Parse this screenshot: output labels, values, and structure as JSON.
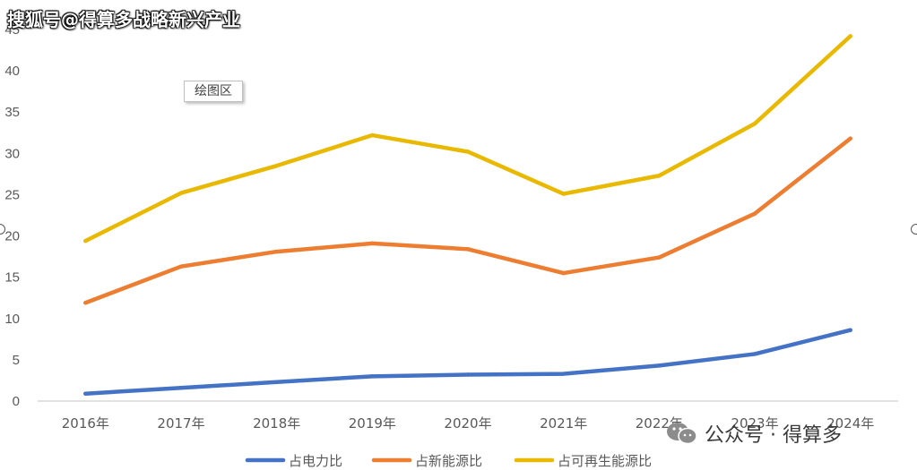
{
  "watermark_top": "搜狐号@得算多战略新兴产业",
  "plot_area_label": "绘图区",
  "watermark_bottom": "公众号 · 得算多",
  "colors": {
    "blue": "#4472C4",
    "orange": "#ED7D31",
    "yellow": "#E8B900",
    "axis": "#D9D9D9",
    "text": "#595959"
  },
  "chart_data": {
    "type": "line",
    "title": "",
    "xlabel": "",
    "ylabel": "",
    "categories": [
      "2016年",
      "2017年",
      "2018年",
      "2019年",
      "2020年",
      "2021年",
      "2022年",
      "2023年",
      "2024年"
    ],
    "yticks": [
      0,
      5,
      10,
      15,
      20,
      25,
      30,
      35,
      40,
      45
    ],
    "ylim": [
      0,
      45
    ],
    "grid": false,
    "legend_position": "bottom",
    "series": [
      {
        "name": "占电力比",
        "color": "#4472C4",
        "values": [
          0.9,
          1.6,
          2.3,
          3.0,
          3.2,
          3.3,
          4.3,
          5.7,
          8.6
        ]
      },
      {
        "name": "占新能源比",
        "color": "#ED7D31",
        "values": [
          11.9,
          16.3,
          18.1,
          19.1,
          18.4,
          15.5,
          17.4,
          22.7,
          31.8
        ]
      },
      {
        "name": "占可再生能源比",
        "color": "#E8B900",
        "values": [
          19.4,
          25.2,
          28.5,
          32.2,
          30.2,
          25.1,
          27.3,
          33.6,
          44.2
        ]
      }
    ]
  }
}
